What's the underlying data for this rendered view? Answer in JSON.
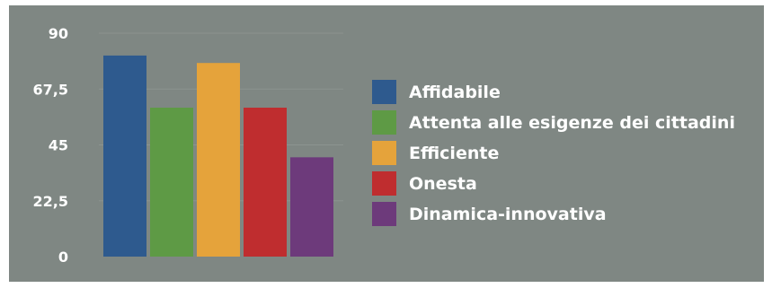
{
  "chart_data": {
    "type": "bar",
    "title": "",
    "xlabel": "",
    "ylabel": "",
    "ylim": [
      0,
      90
    ],
    "y_ticks": [
      "0",
      "22,5",
      "45",
      "67,5",
      "90"
    ],
    "y_tick_values": [
      0,
      22.5,
      45,
      67.5,
      90
    ],
    "grid": true,
    "legend_position": "right",
    "series": [
      {
        "name": "Affidabile",
        "value": 81,
        "color": "#2e5a8e"
      },
      {
        "name": "Attenta alle esigenze dei cittadini",
        "value": 60,
        "color": "#5e9a45"
      },
      {
        "name": "Efficiente",
        "value": 78,
        "color": "#e5a33b"
      },
      {
        "name": "Onesta",
        "value": 60,
        "color": "#bf2d2f"
      },
      {
        "name": "Dinamica-innovativa",
        "value": 40,
        "color": "#6d3a7b"
      }
    ]
  },
  "colors": {
    "background": "#7f8783",
    "text": "#ffffff",
    "grid": "#8c938f"
  }
}
